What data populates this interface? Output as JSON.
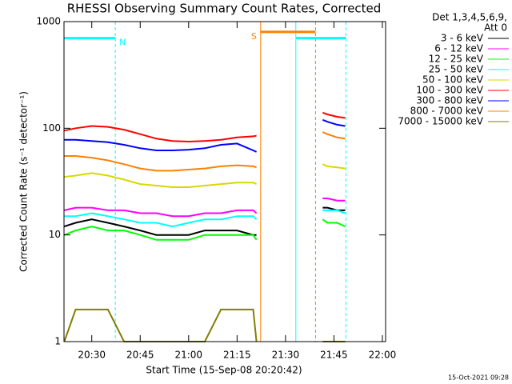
{
  "chart_data": {
    "type": "line",
    "title": "RHESSI Observing Summary Count Rates, Corrected",
    "xlabel": "Start Time (15-Sep-08 20:20:42)",
    "ylabel": "Corrected Count Rate (s⁻¹ detector⁻¹)",
    "legend_title": [
      "Det 1,3,4,5,6,9,",
      "Att 0"
    ],
    "timestamp": "15-Oct-2021 09:28",
    "log_y": true,
    "ylim": [
      1,
      1000
    ],
    "yticks": [
      1,
      10,
      100,
      1000
    ],
    "xlim": [
      21.4,
      121
    ],
    "xticks": [
      {
        "value": 30,
        "label": "20:30"
      },
      {
        "value": 45,
        "label": "20:45"
      },
      {
        "value": 60,
        "label": "21:00"
      },
      {
        "value": 75,
        "label": "21:15"
      },
      {
        "value": 90,
        "label": "21:30"
      },
      {
        "value": 105,
        "label": "21:45"
      },
      {
        "value": 120,
        "label": "22:00"
      }
    ],
    "x": [
      21.5,
      25,
      30,
      35,
      40,
      45,
      50,
      55,
      60,
      65,
      70,
      75,
      80,
      81,
      91,
      101.5,
      103,
      106,
      108.5
    ],
    "series": [
      {
        "name": "3 - 6 keV",
        "color": "#000000",
        "values": [
          12,
          13,
          14,
          13,
          12,
          11,
          10,
          10,
          10,
          11,
          11,
          11,
          10,
          10,
          null,
          18,
          18,
          17,
          17
        ]
      },
      {
        "name": "6 - 12 keV",
        "color": "#ff00ff",
        "values": [
          17,
          18,
          18,
          17,
          17,
          16,
          16,
          15,
          15,
          16,
          16,
          17,
          17,
          16,
          null,
          22,
          22,
          21,
          21
        ]
      },
      {
        "name": "12 - 25 keV",
        "color": "#00ff00",
        "values": [
          10,
          11,
          12,
          11,
          11,
          10,
          9,
          9,
          9,
          10,
          10,
          10,
          10,
          9,
          null,
          14,
          13,
          13,
          12
        ]
      },
      {
        "name": "25 - 50 keV",
        "color": "#00ffff",
        "values": [
          15,
          15,
          16,
          15,
          14,
          13,
          13,
          12,
          13,
          14,
          14,
          15,
          15,
          14,
          null,
          17,
          17,
          17,
          16
        ]
      },
      {
        "name": "50 - 100 keV",
        "color": "#d8d800",
        "values": [
          35,
          36,
          38,
          36,
          33,
          30,
          29,
          28,
          28,
          29,
          30,
          31,
          31,
          30,
          null,
          46,
          44,
          43,
          42
        ]
      },
      {
        "name": "100 - 300 keV",
        "color": "#ff0000",
        "values": [
          95,
          100,
          105,
          103,
          97,
          88,
          80,
          76,
          75,
          76,
          78,
          82,
          84,
          85,
          null,
          140,
          135,
          128,
          125
        ]
      },
      {
        "name": "300 - 800 keV",
        "color": "#0000ff",
        "values": [
          78,
          78,
          76,
          74,
          70,
          65,
          62,
          62,
          63,
          65,
          70,
          72,
          62,
          60,
          null,
          120,
          115,
          108,
          105
        ]
      },
      {
        "name": "800 - 7000 keV",
        "color": "#ff8000",
        "values": [
          55,
          55,
          53,
          50,
          46,
          42,
          40,
          40,
          41,
          42,
          44,
          45,
          44,
          43,
          null,
          92,
          88,
          82,
          80
        ]
      },
      {
        "name": "7000 - 15000 keV",
        "color": "#808000",
        "values": [
          1,
          2,
          2,
          2,
          1,
          1,
          1,
          1,
          1,
          1,
          2,
          2,
          2,
          1,
          null,
          1,
          1,
          1,
          1
        ]
      }
    ],
    "markers": [
      {
        "x": 21.4,
        "color": "#00ffff",
        "style": "solid"
      },
      {
        "x": 37.3,
        "color": "#00ffff",
        "style": "dashed"
      },
      {
        "x": 82.3,
        "color": "#ff8000",
        "style": "solid"
      },
      {
        "x": 93.2,
        "color": "#00ffff",
        "style": "solid"
      },
      {
        "x": 99.3,
        "color": "#ff8000",
        "style": "dashed"
      },
      {
        "x": 108.7,
        "color": "#00ffff",
        "style": "dashed"
      }
    ],
    "flags": [
      {
        "label": "N",
        "color": "#00ffff",
        "x": [
          21.4,
          37.3
        ],
        "y": 700,
        "label_at": "end"
      },
      {
        "label": "S",
        "color": "#ff8000",
        "x": [
          82.3,
          99.3
        ],
        "y": 800,
        "label_at": "start"
      },
      {
        "color": "#00ffff",
        "x": [
          93.2,
          108.7
        ],
        "y": 700
      }
    ]
  }
}
